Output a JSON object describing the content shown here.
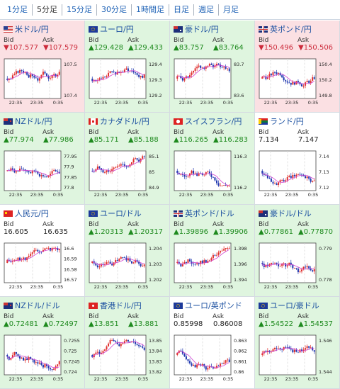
{
  "tabs": [
    {
      "label": "1分足",
      "active": false
    },
    {
      "label": "5分足",
      "active": true
    },
    {
      "label": "15分足",
      "active": false
    },
    {
      "label": "30分足",
      "active": false
    },
    {
      "label": "1時間足",
      "active": false
    },
    {
      "label": "日足",
      "active": false
    },
    {
      "label": "週足",
      "active": false
    },
    {
      "label": "月足",
      "active": false
    }
  ],
  "bid_label": "Bid",
  "ask_label": "Ask",
  "colors": {
    "up_bg": "#dff5df",
    "down_bg": "#fbe0e3",
    "up_text": "#1e8a1e",
    "down_text": "#cc2a3a",
    "link": "#1a4fa0"
  },
  "pairs": [
    {
      "name": "米ドル/円",
      "flag": "us",
      "dir": "down",
      "bid": "▼107.577",
      "ask": "▼107.579",
      "xticks": [
        "22:35",
        "23:35",
        "0:35"
      ],
      "yticks": [
        "107.5",
        "107.4"
      ],
      "trend": 1
    },
    {
      "name": "ユーロ/円",
      "flag": "eu",
      "dir": "up",
      "bid": "▲129.428",
      "ask": "▲129.433",
      "xticks": [
        "22:35",
        "23:35",
        "0:35"
      ],
      "yticks": [
        "129.4",
        "129.3",
        "129.2"
      ],
      "trend": 1
    },
    {
      "name": "豪ドル/円",
      "flag": "au",
      "dir": "up",
      "bid": "▲83.757",
      "ask": "▲83.764",
      "xticks": [
        "22:35",
        "23:35",
        "0:35"
      ],
      "yticks": [
        "83.7",
        "83.6"
      ],
      "trend": 0
    },
    {
      "name": "英ポンド/円",
      "flag": "gb",
      "dir": "down",
      "bid": "▼150.496",
      "ask": "▼150.506",
      "xticks": [
        "22:35",
        "23:35",
        "0:35"
      ],
      "yticks": [
        "150.4",
        "150.2",
        "149.8"
      ],
      "trend": 1
    },
    {
      "name": "NZドル/円",
      "flag": "nz",
      "dir": "up",
      "bid": "▲77.974",
      "ask": "▲77.986",
      "xticks": [
        "22:35",
        "23:35",
        "0:35"
      ],
      "yticks": [
        "77.95",
        "77.9",
        "77.85",
        "77.8"
      ],
      "trend": 0
    },
    {
      "name": "カナダドル/円",
      "flag": "ca",
      "dir": "up",
      "bid": "▲85.171",
      "ask": "▲85.188",
      "xticks": [
        "22:35",
        "23:35",
        "0:35"
      ],
      "yticks": [
        "85.1",
        "85",
        "84.9"
      ],
      "trend": 1
    },
    {
      "name": "スイスフラン/円",
      "flag": "ch",
      "dir": "up",
      "bid": "▲116.265",
      "ask": "▲116.283",
      "xticks": [
        "22:35",
        "23:35",
        "0:35"
      ],
      "yticks": [
        "116.3",
        "116.2"
      ],
      "trend": -1
    },
    {
      "name": "ランド/円",
      "flag": "za",
      "dir": "flat",
      "bid": "7.134",
      "ask": "7.147",
      "xticks": [
        "22:35",
        "23:35",
        "0:35"
      ],
      "yticks": [
        "7.14",
        "7.13",
        "7.12"
      ],
      "trend": 0
    },
    {
      "name": "人民元/円",
      "flag": "cn",
      "dir": "flat",
      "bid": "16.605",
      "ask": "16.635",
      "xticks": [
        "22:35",
        "23:35",
        "0:35"
      ],
      "yticks": [
        "16.6",
        "16.59",
        "16.58",
        "16.57"
      ],
      "trend": 1
    },
    {
      "name": "ユーロ/ドル",
      "flag": "eu",
      "dir": "up",
      "bid": "▲1.20313",
      "ask": "▲1.20317",
      "xticks": [
        "22:35",
        "23:35",
        "0:35"
      ],
      "yticks": [
        "1.204",
        "1.203",
        "1.202"
      ],
      "trend": 0
    },
    {
      "name": "英ポンド/ドル",
      "flag": "gb",
      "dir": "up",
      "bid": "▲1.39896",
      "ask": "▲1.39906",
      "xticks": [
        "22:35",
        "23:35",
        "0:35"
      ],
      "yticks": [
        "1.398",
        "1.396",
        "1.394"
      ],
      "trend": 1
    },
    {
      "name": "豪ドル/ドル",
      "flag": "au",
      "dir": "up",
      "bid": "▲0.77861",
      "ask": "▲0.77870",
      "xticks": [
        "22:35",
        "23:35",
        "0:35"
      ],
      "yticks": [
        "0.779",
        "0.778"
      ],
      "trend": -1
    },
    {
      "name": "NZドル/ドル",
      "flag": "nz",
      "dir": "up",
      "bid": "▲0.72481",
      "ask": "▲0.72497",
      "xticks": [
        "22:35",
        "23:35",
        "0:35"
      ],
      "yticks": [
        "0.7255",
        "0.725",
        "0.7245",
        "0.724"
      ],
      "trend": 0
    },
    {
      "name": "香港ドル/円",
      "flag": "hk",
      "dir": "up",
      "bid": "▲13.851",
      "ask": "▲13.881",
      "xticks": [
        "22:35",
        "23:35",
        "0:35"
      ],
      "yticks": [
        "13.85",
        "13.84",
        "13.83",
        "13.82"
      ],
      "trend": 1
    },
    {
      "name": "ユーロ/英ポンド",
      "flag": "eu",
      "dir": "flat",
      "bid": "0.85998",
      "ask": "0.86008",
      "xticks": [
        "22:35",
        "23:35",
        "0:35"
      ],
      "yticks": [
        "0.863",
        "0.862",
        "0.861",
        "0.86"
      ],
      "trend": -1
    },
    {
      "name": "ユーロ/豪ドル",
      "flag": "eu",
      "dir": "up",
      "bid": "▲1.54522",
      "ask": "▲1.54537",
      "xticks": [
        "22:35",
        "23:35",
        "0:35"
      ],
      "yticks": [
        "1.546",
        "1.544"
      ],
      "trend": 0
    }
  ]
}
